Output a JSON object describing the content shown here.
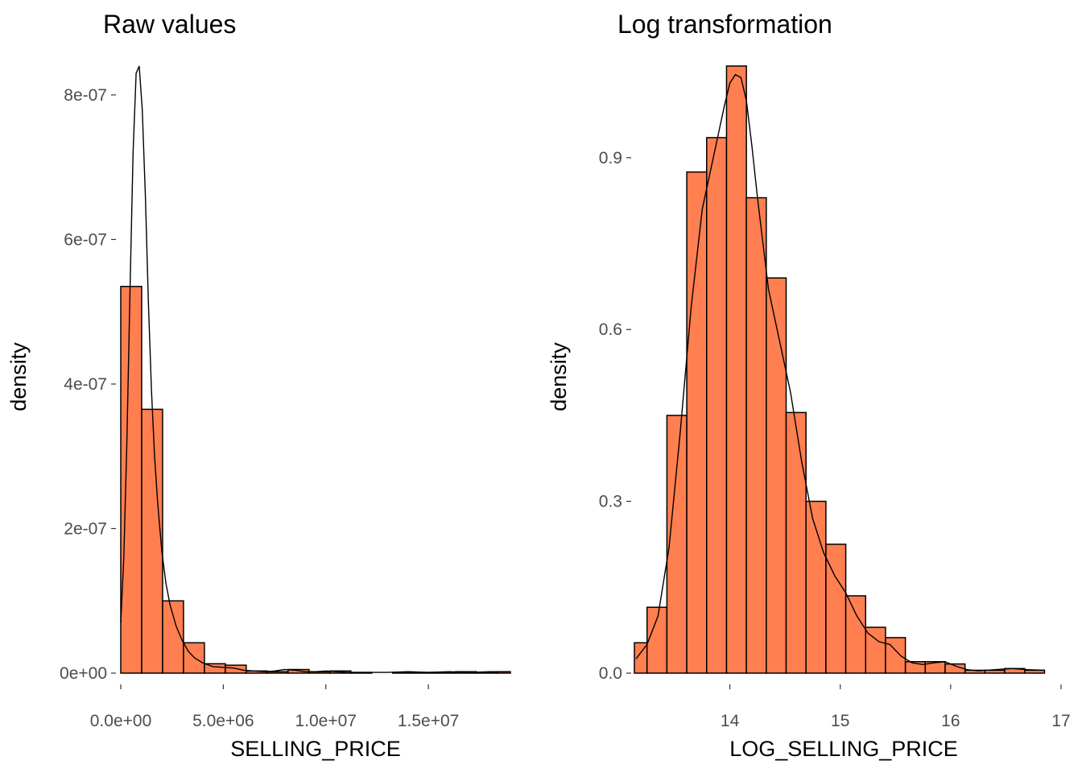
{
  "chart_data": [
    {
      "type": "bar",
      "subtype": "histogram",
      "title": "Raw values",
      "xlabel": "SELLING_PRICE",
      "ylabel": "density",
      "fill_color": "#FF7F50",
      "outline_color": "#000000",
      "grid": false,
      "xlim": [
        0,
        19000000
      ],
      "ylim": [
        0,
        8.4e-07
      ],
      "x_ticks": [
        {
          "value": 0,
          "label": "0.0e+00"
        },
        {
          "value": 5000000,
          "label": "5.0e+06"
        },
        {
          "value": 10000000,
          "label": "1.0e+07"
        },
        {
          "value": 15000000,
          "label": "1.5e+07"
        }
      ],
      "y_ticks": [
        {
          "value": 0,
          "label": "0e+00"
        },
        {
          "value": 2e-07,
          "label": "2e-07"
        },
        {
          "value": 4e-07,
          "label": "4e-07"
        },
        {
          "value": 6e-07,
          "label": "6e-07"
        },
        {
          "value": 8e-07,
          "label": "8e-07"
        }
      ],
      "bins": [
        {
          "x0": 0,
          "x1": 1020000,
          "density": 5.35e-07
        },
        {
          "x0": 1020000,
          "x1": 2040000,
          "density": 3.65e-07
        },
        {
          "x0": 2040000,
          "x1": 3060000,
          "density": 1e-07
        },
        {
          "x0": 3060000,
          "x1": 4080000,
          "density": 4.2e-08
        },
        {
          "x0": 4080000,
          "x1": 5100000,
          "density": 1.3e-08
        },
        {
          "x0": 5100000,
          "x1": 6120000,
          "density": 1.1e-08
        },
        {
          "x0": 6120000,
          "x1": 7140000,
          "density": 3e-09
        },
        {
          "x0": 7140000,
          "x1": 8160000,
          "density": 2e-09
        },
        {
          "x0": 8160000,
          "x1": 9180000,
          "density": 5e-09
        },
        {
          "x0": 9180000,
          "x1": 10200000,
          "density": 2e-09
        },
        {
          "x0": 10200000,
          "x1": 11220000,
          "density": 3e-09
        },
        {
          "x0": 11220000,
          "x1": 12240000,
          "density": 1e-09
        },
        {
          "x0": 12240000,
          "x1": 13260000,
          "density": 0
        },
        {
          "x0": 13260000,
          "x1": 14280000,
          "density": 1e-09
        },
        {
          "x0": 14280000,
          "x1": 15300000,
          "density": 1e-09
        },
        {
          "x0": 15300000,
          "x1": 16320000,
          "density": 1e-09
        },
        {
          "x0": 16320000,
          "x1": 17340000,
          "density": 2e-09
        },
        {
          "x0": 17340000,
          "x1": 18360000,
          "density": 1e-09
        },
        {
          "x0": 18360000,
          "x1": 19000000,
          "density": 2e-09
        }
      ],
      "density_curve": {
        "x": [
          0,
          150000,
          300000,
          450000,
          600000,
          750000,
          900000,
          1050000,
          1200000,
          1350000,
          1500000,
          1650000,
          1800000,
          2000000,
          2200000,
          2400000,
          2700000,
          3000000,
          3300000,
          3600000,
          4000000,
          4500000,
          5000000,
          5500000,
          6000000,
          6500000,
          7000000,
          7500000,
          8000000,
          8500000,
          9000000,
          9500000,
          10000000,
          10500000,
          11000000,
          12000000,
          13000000,
          14000000,
          15000000,
          16000000,
          17000000,
          18000000,
          19000000
        ],
        "y": [
          7e-08,
          1.6e-07,
          3.2e-07,
          5.3e-07,
          7.2e-07,
          8.3e-07,
          8.4e-07,
          7.8e-07,
          6.6e-07,
          5.1e-07,
          3.9e-07,
          3e-07,
          2.35e-07,
          1.7e-07,
          1.25e-07,
          9.5e-08,
          6.5e-08,
          4.5e-08,
          3e-08,
          2.1e-08,
          1.4e-08,
          9e-09,
          8e-09,
          7e-09,
          4e-09,
          3e-09,
          2e-09,
          3e-09,
          5e-09,
          4e-09,
          2e-09,
          2e-09,
          3e-09,
          2e-09,
          1e-09,
          1e-09,
          1e-09,
          2e-09,
          1e-09,
          2e-09,
          1e-09,
          2e-09,
          2e-09
        ]
      }
    },
    {
      "type": "bar",
      "subtype": "histogram",
      "title": "Log transformation",
      "xlabel": "LOG_SELLING_PRICE",
      "ylabel": "density",
      "fill_color": "#FF7F50",
      "outline_color": "#000000",
      "grid": false,
      "xlim": [
        13.15,
        17.0
      ],
      "ylim": [
        0,
        1.06
      ],
      "x_ticks": [
        {
          "value": 14,
          "label": "14"
        },
        {
          "value": 15,
          "label": "15"
        },
        {
          "value": 16,
          "label": "16"
        },
        {
          "value": 17,
          "label": "17"
        }
      ],
      "y_ticks": [
        {
          "value": 0.0,
          "label": "0.0"
        },
        {
          "value": 0.3,
          "label": "0.3"
        },
        {
          "value": 0.6,
          "label": "0.6"
        },
        {
          "value": 0.9,
          "label": "0.9"
        }
      ],
      "bins": [
        {
          "x0": 13.07,
          "x1": 13.25,
          "density": 0.053
        },
        {
          "x0": 13.25,
          "x1": 13.43,
          "density": 0.115
        },
        {
          "x0": 13.43,
          "x1": 13.61,
          "density": 0.45
        },
        {
          "x0": 13.61,
          "x1": 13.79,
          "density": 0.875
        },
        {
          "x0": 13.79,
          "x1": 13.97,
          "density": 0.935
        },
        {
          "x0": 13.97,
          "x1": 14.15,
          "density": 1.06
        },
        {
          "x0": 14.15,
          "x1": 14.33,
          "density": 0.83
        },
        {
          "x0": 14.33,
          "x1": 14.51,
          "density": 0.69
        },
        {
          "x0": 14.51,
          "x1": 14.69,
          "density": 0.455
        },
        {
          "x0": 14.69,
          "x1": 14.87,
          "density": 0.3
        },
        {
          "x0": 14.87,
          "x1": 15.05,
          "density": 0.225
        },
        {
          "x0": 15.05,
          "x1": 15.23,
          "density": 0.135
        },
        {
          "x0": 15.23,
          "x1": 15.41,
          "density": 0.08
        },
        {
          "x0": 15.41,
          "x1": 15.59,
          "density": 0.062
        },
        {
          "x0": 15.59,
          "x1": 15.77,
          "density": 0.02
        },
        {
          "x0": 15.77,
          "x1": 15.95,
          "density": 0.02
        },
        {
          "x0": 15.95,
          "x1": 16.13,
          "density": 0.016
        },
        {
          "x0": 16.13,
          "x1": 16.31,
          "density": 0.005
        },
        {
          "x0": 16.31,
          "x1": 16.49,
          "density": 0.005
        },
        {
          "x0": 16.49,
          "x1": 16.67,
          "density": 0.008
        },
        {
          "x0": 16.67,
          "x1": 16.85,
          "density": 0.005
        }
      ],
      "density_curve": {
        "x": [
          13.15,
          13.25,
          13.35,
          13.45,
          13.55,
          13.65,
          13.75,
          13.85,
          13.95,
          14.0,
          14.05,
          14.1,
          14.15,
          14.2,
          14.25,
          14.35,
          14.45,
          14.55,
          14.65,
          14.75,
          14.85,
          14.95,
          15.05,
          15.15,
          15.25,
          15.35,
          15.45,
          15.55,
          15.65,
          15.75,
          15.85,
          15.95,
          16.05,
          16.15,
          16.25,
          16.4,
          16.55,
          16.7,
          16.85
        ],
        "y": [
          0.025,
          0.05,
          0.1,
          0.22,
          0.42,
          0.64,
          0.81,
          0.9,
          0.99,
          1.03,
          1.045,
          1.04,
          1.0,
          0.92,
          0.83,
          0.67,
          0.58,
          0.49,
          0.37,
          0.27,
          0.21,
          0.17,
          0.14,
          0.1,
          0.07,
          0.055,
          0.05,
          0.03,
          0.018,
          0.015,
          0.018,
          0.02,
          0.012,
          0.006,
          0.004,
          0.006,
          0.008,
          0.006,
          0.005
        ]
      }
    }
  ]
}
